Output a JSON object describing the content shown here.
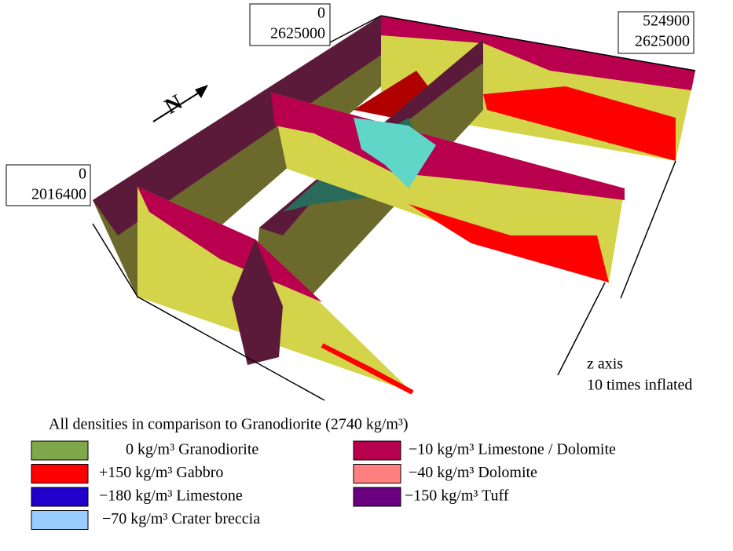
{
  "corner_labels": {
    "south_west": [
      "0",
      "2016400"
    ],
    "north_west": [
      "0",
      "2625000"
    ],
    "north_east": [
      "524900",
      "2625000"
    ]
  },
  "compass": "N",
  "z_axis_note": [
    "z axis",
    "10 times inflated"
  ],
  "caption": "All densities in comparison to Granodiorite (2740 kg/m³)",
  "legend": [
    {
      "label": "0 kg/m³ Granodiorite",
      "color": "#7ea84a"
    },
    {
      "label": "+150 kg/m³ Gabbro",
      "color": "#ff0000"
    },
    {
      "label": "−180 kg/m³ Limestone",
      "color": "#2200cc"
    },
    {
      "label": "−70 kg/m³ Crater breccia",
      "color": "#99ccff"
    },
    {
      "label": "−10 kg/m³ Limestone / Dolomite",
      "color": "#b8004f"
    },
    {
      "label": "−40 kg/m³ Dolomite",
      "color": "#ff8080"
    },
    {
      "label": "−150 kg/m³ Tuff",
      "color": "#6a0080"
    }
  ]
}
